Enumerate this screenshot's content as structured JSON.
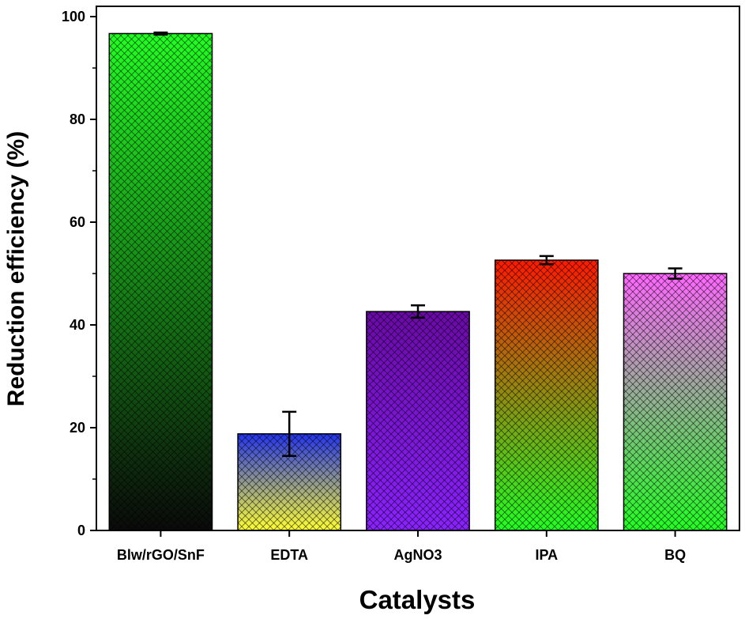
{
  "chart_data": {
    "type": "bar",
    "title": "",
    "xlabel": "Catalysts",
    "ylabel": "Reduction efficiency (%)",
    "ylim": [
      0,
      102
    ],
    "yticks": [
      0,
      20,
      40,
      60,
      80,
      100
    ],
    "grid": false,
    "categories": [
      "Blw/rGO/SnF",
      "EDTA",
      "AgNO3",
      "IPA",
      "BQ"
    ],
    "values": [
      96.7,
      18.8,
      42.6,
      52.6,
      50.0
    ],
    "errors": [
      0.2,
      4.3,
      1.2,
      0.8,
      1.0
    ],
    "colors": [
      [
        "#22ff22",
        "#0a0a0a"
      ],
      [
        "#2233ee",
        "#ffff33"
      ],
      [
        "#6a0aa6",
        "#8a22ff"
      ],
      [
        "#ff1a00",
        "#22ff22"
      ],
      [
        "#ff66ff",
        "#22ff22"
      ]
    ]
  }
}
